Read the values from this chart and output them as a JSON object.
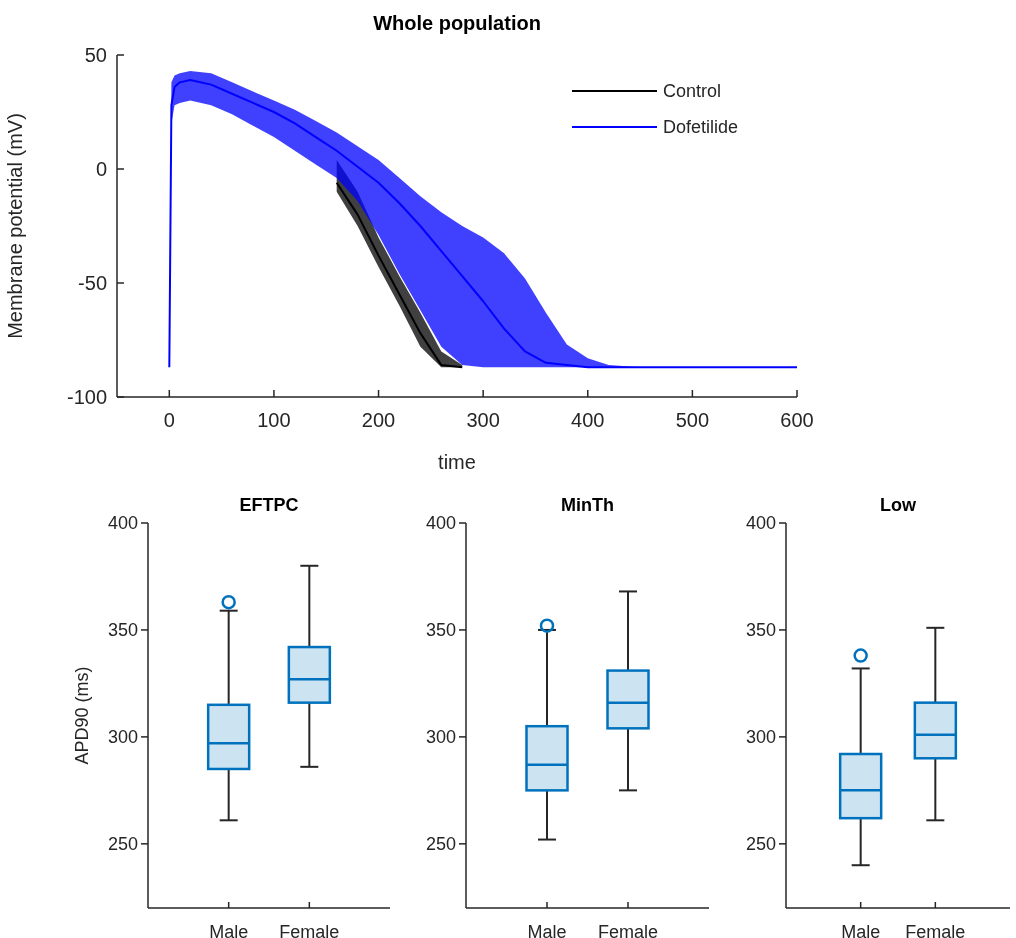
{
  "chart_data": [
    {
      "type": "line",
      "title": "Whole population",
      "xlabel": "time",
      "ylabel": "Membrane potential (mV)",
      "xlim": [
        -50,
        600
      ],
      "ylim": [
        -100,
        50
      ],
      "xticks": [
        0,
        100,
        200,
        300,
        400,
        500,
        600
      ],
      "yticks": [
        -100,
        -50,
        0,
        50
      ],
      "legend": "top right",
      "grid": false,
      "marker": "none",
      "line_style": "solid",
      "x": [
        0,
        2,
        5,
        10,
        20,
        40,
        60,
        80,
        100,
        120,
        140,
        160,
        180,
        200,
        220,
        240,
        260,
        280,
        300,
        320,
        340,
        360,
        380,
        400,
        420,
        450,
        500,
        550,
        600
      ],
      "series": [
        {
          "name": "Control",
          "color": "#000000",
          "values": [
            null,
            null,
            null,
            null,
            null,
            null,
            null,
            null,
            null,
            null,
            null,
            -6,
            -20,
            -38,
            -55,
            -72,
            -86,
            -87,
            null,
            null,
            null,
            null,
            null,
            null,
            null,
            null,
            null,
            null,
            null
          ],
          "lower": [
            null,
            null,
            null,
            null,
            null,
            null,
            null,
            null,
            null,
            null,
            null,
            -10,
            -25,
            -43,
            -60,
            -78,
            -87,
            -87,
            null,
            null,
            null,
            null,
            null,
            null,
            null,
            null,
            null,
            null,
            null
          ],
          "upper": [
            null,
            null,
            null,
            null,
            null,
            null,
            null,
            null,
            null,
            null,
            null,
            4,
            -10,
            -30,
            -47,
            -63,
            -80,
            -86,
            null,
            null,
            null,
            null,
            null,
            null,
            null,
            null,
            null,
            null,
            null
          ]
        },
        {
          "name": "Dofetilide",
          "color": "#0000ff",
          "values": [
            -87,
            28,
            36,
            38,
            39,
            37,
            33,
            29,
            25,
            20,
            14,
            8,
            1,
            -6,
            -15,
            -25,
            -36,
            -47,
            -58,
            -70,
            -80,
            -85,
            -86,
            -87,
            -87,
            -87,
            -87,
            -87,
            -87
          ],
          "lower": [
            -87,
            20,
            28,
            29,
            30,
            28,
            24,
            19,
            14,
            8,
            2,
            -4,
            -14,
            -29,
            -46,
            -62,
            -78,
            -86,
            -87,
            -87,
            -87,
            -87,
            -87,
            -87,
            -87,
            -87,
            -87,
            -87,
            -87
          ],
          "upper": [
            -87,
            38,
            41,
            42,
            43,
            42,
            38,
            34,
            30,
            26,
            21,
            16,
            10,
            4,
            -4,
            -12,
            -19,
            -25,
            -30,
            -37,
            -48,
            -63,
            -77,
            -83,
            -86,
            -87,
            -87,
            -87,
            -87
          ]
        }
      ]
    },
    {
      "type": "box",
      "title": "EFTPC",
      "ylabel": "APD90 (ms)",
      "categories": [
        "Male",
        "Female"
      ],
      "ylim": [
        220,
        400
      ],
      "yticks": [
        250,
        300,
        350,
        400
      ],
      "grid": false,
      "series": [
        {
          "color": "#0072bd",
          "boxes": [
            {
              "low": 261,
              "q1": 285,
              "median": 297,
              "q3": 315,
              "high": 359,
              "outliers": [
                363
              ]
            },
            {
              "low": 286,
              "q1": 316,
              "median": 327,
              "q3": 342,
              "high": 380
            }
          ]
        }
      ]
    },
    {
      "type": "box",
      "title": "MinTh",
      "categories": [
        "Male",
        "Female"
      ],
      "ylim": [
        220,
        400
      ],
      "yticks": [
        250,
        300,
        350,
        400
      ],
      "grid": false,
      "series": [
        {
          "color": "#0072bd",
          "boxes": [
            {
              "low": 252,
              "q1": 275,
              "median": 287,
              "q3": 305,
              "high": 350,
              "outliers": [
                352
              ]
            },
            {
              "low": 275,
              "q1": 304,
              "median": 316,
              "q3": 331,
              "high": 368
            }
          ]
        }
      ]
    },
    {
      "type": "box",
      "title": "Low",
      "categories": [
        "Male",
        "Female"
      ],
      "ylim": [
        220,
        400
      ],
      "yticks": [
        250,
        300,
        350,
        400
      ],
      "grid": false,
      "series": [
        {
          "color": "#0072bd",
          "boxes": [
            {
              "low": 240,
              "q1": 262,
              "median": 275,
              "q3": 292,
              "high": 332,
              "outliers": [
                338
              ]
            },
            {
              "low": 261,
              "q1": 290,
              "median": 301,
              "q3": 316,
              "high": 351
            }
          ]
        }
      ]
    }
  ]
}
